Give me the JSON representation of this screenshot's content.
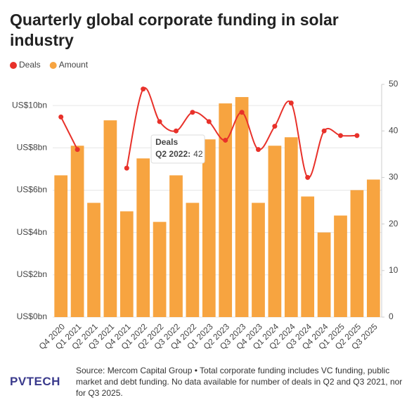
{
  "chart_data": {
    "type": "bar_line",
    "title": "Quarterly global corporate funding in solar industry",
    "categories": [
      "Q4 2020",
      "Q1 2021",
      "Q2 2021",
      "Q3 2021",
      "Q4 2021",
      "Q1 2022",
      "Q2 2022",
      "Q3 2022",
      "Q4 2022",
      "Q1 2023",
      "Q2 2023",
      "Q3 2023",
      "Q4 2023",
      "Q1 2024",
      "Q2 2024",
      "Q3 2024",
      "Q4 2024",
      "Q1 2025",
      "Q2 2025",
      "Q3 2025"
    ],
    "series": [
      {
        "name": "Deals",
        "type": "line",
        "axis": "y2",
        "color": "#e8312a",
        "values": [
          43,
          36,
          null,
          null,
          32,
          49,
          42,
          40,
          44,
          42,
          38,
          44,
          36,
          41,
          46,
          30,
          40,
          39,
          39,
          null
        ]
      },
      {
        "name": "Amount",
        "type": "bar",
        "color": "#f7a440",
        "values": [
          6.7,
          8.1,
          5.4,
          9.3,
          5.0,
          7.5,
          4.5,
          6.7,
          5.4,
          8.4,
          10.1,
          10.4,
          5.4,
          8.1,
          8.5,
          5.7,
          4.0,
          4.8,
          6.0,
          6.5
        ]
      }
    ],
    "ylim": [
      0,
      11
    ],
    "yticks": [
      {
        "value": 0,
        "label": "US$0bn"
      },
      {
        "value": 2,
        "label": "US$2bn"
      },
      {
        "value": 4,
        "label": "US$4bn"
      },
      {
        "value": 6,
        "label": "US$6bn"
      },
      {
        "value": 8,
        "label": "US$8bn"
      },
      {
        "value": 10,
        "label": "US$10bn"
      }
    ],
    "y2lim": [
      0,
      50
    ],
    "y2ticks": [
      0,
      10,
      20,
      30,
      40,
      50
    ],
    "grid": true,
    "legend": "top-left",
    "tooltip": {
      "category": 6,
      "series": 0
    },
    "source": "Source: Mercom Capital Group • Total corporate funding includes VC funding, public market and debt funding. No data available for number of deals in Q2 and Q3 2021, nor for Q3 2025.",
    "logo": "PVTECH"
  }
}
